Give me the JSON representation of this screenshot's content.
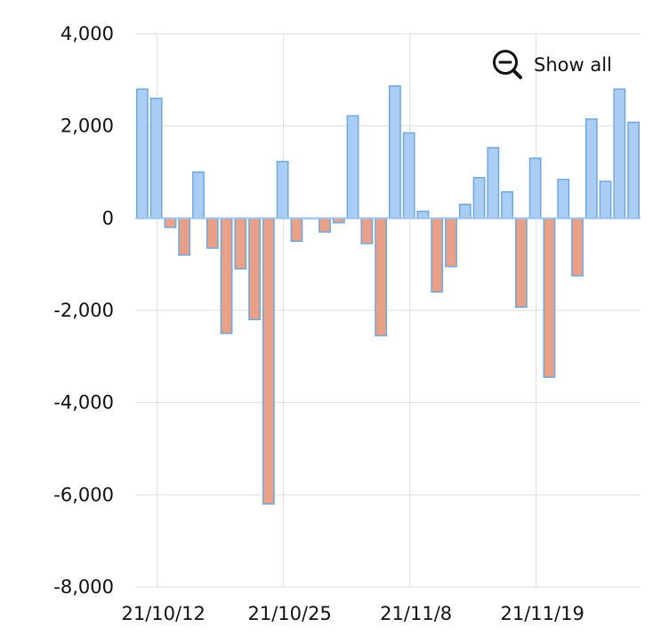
{
  "controls": {
    "show_all_label": "Show all",
    "show_all_icon": "zoom-out-icon"
  },
  "colors": {
    "positive_fill": "#a9cdf4",
    "positive_stroke": "#6fa8dc",
    "negative_fill": "#e8a089",
    "negative_stroke": "#6fa8dc",
    "grid": "#dddddd",
    "axis": "#9ec3ee"
  },
  "chart_data": {
    "type": "bar",
    "title": "",
    "xlabel": "",
    "ylabel": "",
    "ylim": [
      -8000,
      4000
    ],
    "grid": true,
    "yticks": [
      4000,
      2000,
      0,
      -2000,
      -4000,
      -6000,
      -8000
    ],
    "ytick_labels": [
      "4,000",
      "2,000",
      "0",
      "-2,000",
      "-4,000",
      "-6,000",
      "-8,000"
    ],
    "xtick_labels": [
      {
        "label": "21/10/12",
        "index": 1
      },
      {
        "label": "21/10/25",
        "index": 10
      },
      {
        "label": "21/11/8",
        "index": 19
      },
      {
        "label": "21/11/19",
        "index": 28
      }
    ],
    "values": [
      2800,
      2600,
      -200,
      -800,
      1000,
      -650,
      -2500,
      -1100,
      -2200,
      -6200,
      1230,
      -500,
      0,
      -300,
      -100,
      2220,
      -550,
      -2550,
      2870,
      1850,
      150,
      -1600,
      -1050,
      300,
      880,
      1530,
      570,
      -1930,
      1300,
      -3450,
      840,
      -1250,
      2150,
      800,
      2800,
      2080
    ]
  }
}
